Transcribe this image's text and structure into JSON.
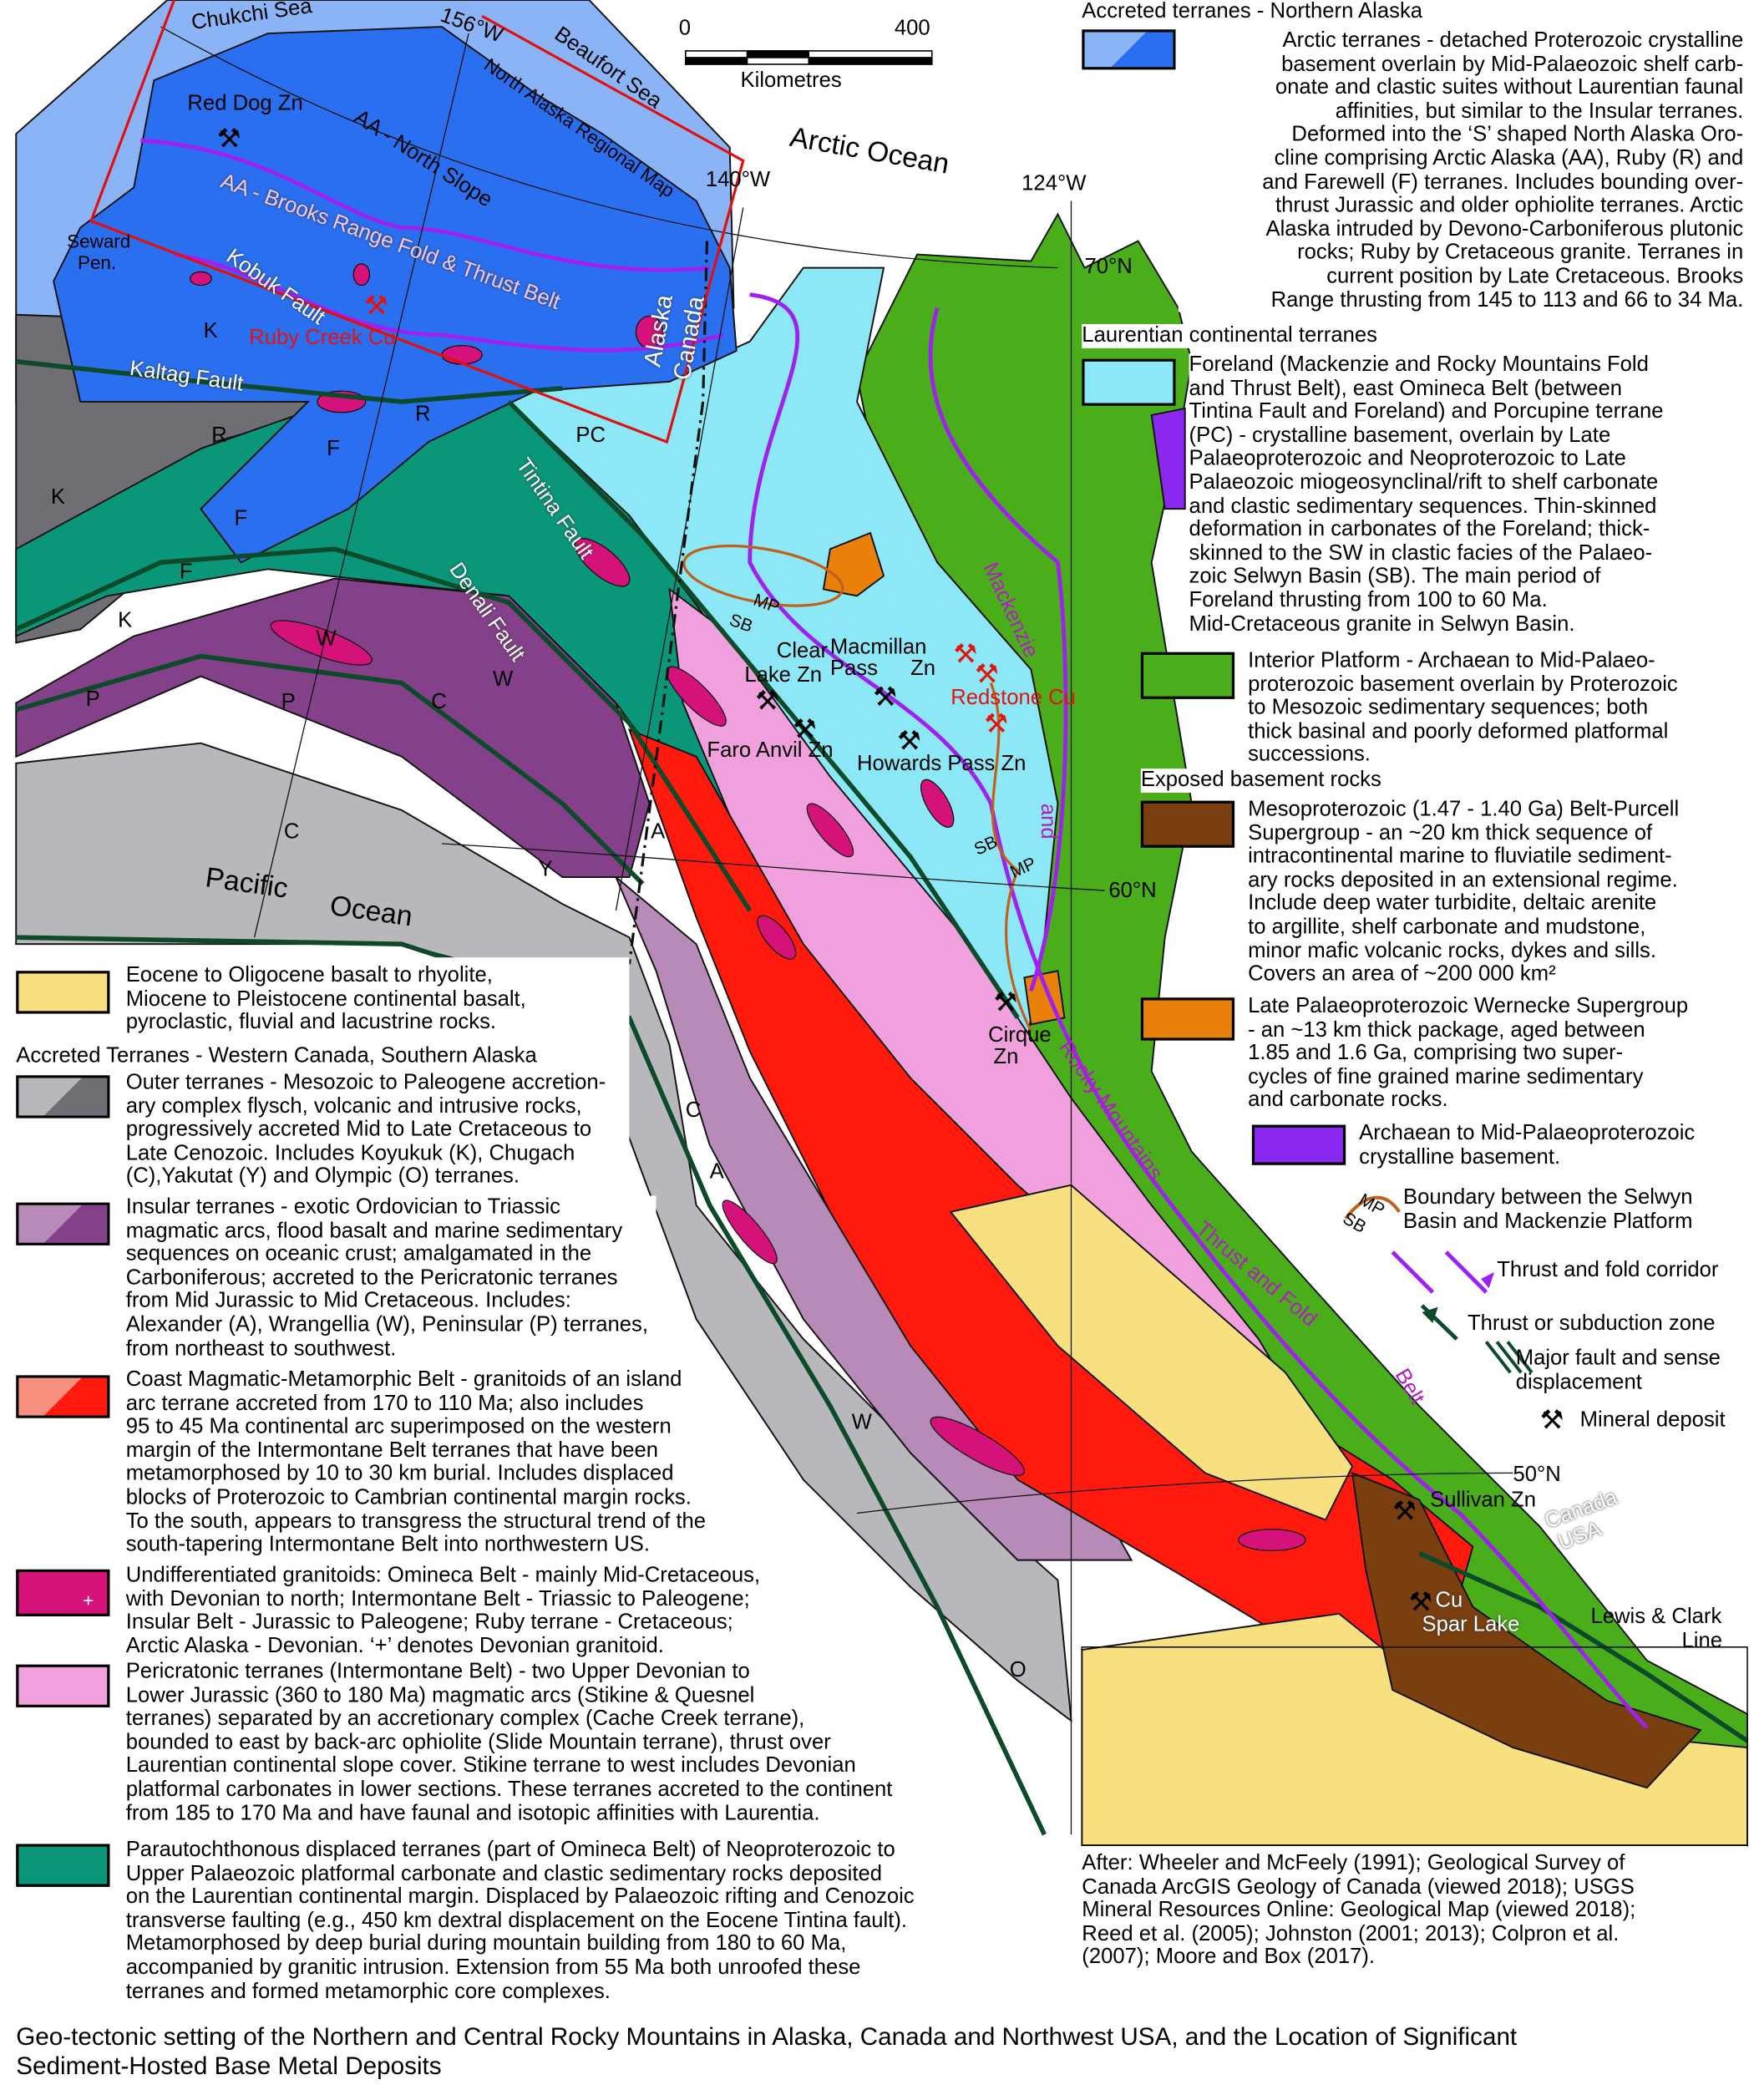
{
  "colors": {
    "arctic": "#2a6ff0",
    "arctic_light": "#8ab4f5",
    "foreland": "#8ce8f6",
    "interior": "#4aae1a",
    "outer": "#6e6e74",
    "outer_light": "#b8b8bc",
    "insular": "#84418a",
    "insular_light": "#b88ab8",
    "coast": "#ff1a0d",
    "coast_light": "#f89080",
    "granitoid": "#d4127a",
    "pericratonic": "#f0a0dc",
    "parautochthonous": "#0a9678",
    "tertiary": "#f8e080",
    "belt": "#7a3f0f",
    "wernecke": "#e8800a",
    "archaean": "#8a28f0",
    "fault": "#0d4a2a",
    "thrust": "#a020f0",
    "boundary": "#c0601a",
    "region_box": "#e01010"
  },
  "map": {
    "scale": {
      "zero": "0",
      "max": "400",
      "unit": "Kilometres"
    },
    "labels": {
      "chukchi": "Chukchi Sea",
      "lon156": "156°W",
      "beaufort": "Beaufort Sea",
      "nregional": "North Alaska Regional Map",
      "arctic_ocean": "Arctic Ocean",
      "lon140": "140°W",
      "lon124": "124°W",
      "lat70": "70°N",
      "lat60": "60°N",
      "lat50": "50°N",
      "red_dog": "Red Dog Zn",
      "north_slope": "AA - North Slope",
      "brooks": "AA - Brooks Range Fold & Thrust Belt",
      "seward1": "Seward",
      "seward2": "Pen.",
      "kobuk": "Kobuk Fault",
      "ruby_creek": "Ruby Creek Cu",
      "kaltag": "Kaltag Fault",
      "alaska": "Alaska",
      "canada": "Canada",
      "K": "K",
      "R": "R",
      "F": "F",
      "PC": "PC",
      "W": "W",
      "P": "P",
      "C": "C",
      "Y": "Y",
      "A": "A",
      "O": "O",
      "tintina": "Tintina Fault",
      "denali": "Denali Fault",
      "pacific": "Pacific",
      "ocean": "Ocean",
      "MP": "MP",
      "SB": "SB",
      "clear1": "Clear",
      "clear2": "Lake Zn",
      "mac1": "Macmillan",
      "mac2": "Pass",
      "mac3": "Zn",
      "redstone": "Redstone Cu",
      "faro": "Faro Anvil Zn",
      "howards": "Howards Pass Zn",
      "mackenzie": "Mackenzie",
      "and": "and",
      "cirque1": "Cirque",
      "cirque2": "Zn",
      "rocky": "Rocky Mountains",
      "thrust_fold": "Thrust   and   Fold",
      "belt": "Belt",
      "sullivan": "Sullivan Zn",
      "canada2": "Canada",
      "usa": "USA",
      "cu": "Cu",
      "spar": "Spar Lake",
      "lewis1": "Lewis & Clark",
      "lewis2": "Line"
    },
    "mineral_deposit_icon": "hammer-pick-icon"
  },
  "legend": {
    "north_alaska_heading": "Accreted terranes - Northern Alaska",
    "arctic": [
      "Arctic terranes - detached Proterozoic crystalline",
      "basement overlain by Mid-Palaeozoic shelf carb-",
      "onate and clastic suites without Laurentian faunal",
      "affinities, but similar to the Insular terranes.",
      "Deformed into the ‘S’ shaped North Alaska Oro-",
      "cline comprising Arctic Alaska (AA), Ruby (R) and",
      "and Farewell (F) terranes. Includes bounding over-",
      "thrust Jurassic and older ophiolite terranes. Arctic",
      "Alaska intruded by Devono-Carboniferous plutonic",
      "rocks; Ruby by Cretaceous granite. Terranes in",
      "current position by Late Cretaceous. Brooks",
      "Range thrusting from 145 to 113 and 66 to 34 Ma."
    ],
    "laurentian_heading": "Laurentian continental terranes",
    "foreland": [
      "Foreland (Mackenzie and Rocky Mountains Fold",
      "and Thrust Belt), east Omineca Belt (between",
      "Tintina Fault and Foreland) and Porcupine terrane",
      "(PC) - crystalline basement, overlain by Late",
      "Palaeoproterozoic and Neoproterozoic to Late",
      "Palaeozoic miogeosynclinal/rift to shelf carbonate",
      "and clastic sedimentary sequences. Thin-skinned",
      "deformation in carbonates of the Foreland; thick-",
      "skinned to the SW in clastic facies of the Palaeo-",
      "zoic Selwyn  Basin (SB). The main period of",
      "Foreland thrusting from 100 to 60 Ma.",
      "Mid-Cretaceous granite in Selwyn Basin."
    ],
    "interior": [
      "Interior Platform - Archaean to Mid-Palaeo-",
      "proterozoic basement overlain by Proterozoic",
      "to Mesozoic sedimentary sequences; both",
      "thick basinal and poorly deformed platformal",
      "successions."
    ],
    "basement_heading": "Exposed basement rocks",
    "belt": [
      "Mesoproterozoic (1.47 - 1.40 Ga) Belt-Purcell",
      "Supergroup - an ~20 km thick sequence of",
      "intracontinental marine to fluviatile sediment-",
      "ary rocks deposited in an extensional regime.",
      "Include deep water turbidite, deltaic arenite",
      "to argillite, shelf carbonate and mudstone,",
      "minor mafic volcanic rocks, dykes and sills.",
      "Covers an area of ~200 000 km²"
    ],
    "wernecke": [
      "Late Palaeoproterozoic Wernecke Supergroup",
      "- an ~13 km thick package, aged between",
      "1.85 and 1.6 Ga, comprising two super-",
      "cycles of  fine grained marine sedimentary",
      "and carbonate rocks."
    ],
    "archaean": [
      "Archaean to Mid-Palaeoproterozoic",
      "crystalline basement."
    ],
    "sym_boundary": [
      "Boundary between the Selwyn",
      "Basin and Mackenzie Platform"
    ],
    "sym_boundary_mp": "MP",
    "sym_boundary_sb": "SB",
    "sym_thrust_fold": "Thrust and fold corridor",
    "sym_subduction": "Thrust or subduction zone",
    "sym_fault": [
      "Major fault and sense",
      "displacement"
    ],
    "sym_mineral": "Mineral deposit",
    "tertiary": [
      "Eocene to Oligocene basalt to rhyolite,",
      "Miocene to Pleistocene continental basalt,",
      "pyroclastic, fluvial and lacustrine rocks."
    ],
    "western_heading": "Accreted Terranes - Western Canada, Southern Alaska",
    "outer": [
      "Outer terranes - Mesozoic to Paleogene accretion-",
      "ary complex flysch, volcanic and intrusive rocks,",
      "progressively accreted Mid to Late Cretaceous to",
      "Late Cenozoic. Includes Koyukuk (K), Chugach",
      "(C),Yakutat (Y) and Olympic (O) terranes."
    ],
    "insular": [
      "Insular terranes - exotic Ordovician to Triassic",
      "magmatic arcs, flood basalt and marine sedimentary",
      "sequences on oceanic crust; amalgamated in the",
      "Carboniferous;  accreted to the Pericratonic terranes",
      "from Mid Jurassic  to Mid Cretaceous. Includes:",
      "Alexander (A), Wrangellia (W), Peninsular (P) terranes,",
      "from northeast to southwest."
    ],
    "coast": [
      "Coast Magmatic-Metamorphic Belt - granitoids of an island",
      "arc terrane accreted from 170 to 110 Ma; also includes",
      "95 to 45 Ma continental arc superimposed on the western",
      "margin of the Intermontane Belt terranes that have been",
      "metamorphosed by 10 to 30 km burial. Includes displaced",
      "blocks of Proterozoic to Cambrian continental margin rocks.",
      "To the south, appears to transgress the structural trend of the",
      "south-tapering Intermontane Belt into northwestern US."
    ],
    "granitoid": [
      "Undifferentiated granitoids: Omineca Belt  - mainly Mid-Cretaceous,",
      "with Devonian to north; Intermontane Belt - Triassic to Paleogene;",
      "Insular Belt - Jurassic to Paleogene; Ruby terrane - Cretaceous;",
      "Arctic Alaska - Devonian. ‘+’ denotes Devonian granitoid."
    ],
    "granitoid_plus": "+",
    "pericratonic": [
      "Pericratonic terranes (Intermontane Belt) - two Upper Devonian to",
      "Lower Jurassic (360 to 180 Ma) magmatic arcs (Stikine & Quesnel",
      "terranes) separated by an accretionary complex (Cache Creek terrane),",
      "bounded to east by back-arc ophiolite (Slide Mountain terrane), thrust over",
      "Laurentian continental slope cover. Stikine terrane to west includes Devonian",
      "platformal carbonates in lower sections. These terranes accreted to the continent",
      "from 185 to 170 Ma and have faunal and isotopic affinities with Laurentia."
    ],
    "parautochthonous": [
      "Parautochthonous displaced terranes (part of Omineca Belt) of Neoproterozoic to",
      "Upper Palaeozoic platformal carbonate and clastic sedimentary rocks deposited",
      "on the Laurentian continental margin. Displaced by Palaeozoic rifting and Cenozoic",
      "transverse faulting (e.g., 450 km dextral displacement on the Eocene Tintina fault).",
      "Metamorphosed by deep burial during mountain building from 180 to 60 Ma,",
      "accompanied by granitic intrusion. Extension from 55 Ma both unroofed these",
      "terranes and formed metamorphic core complexes."
    ]
  },
  "sources": [
    "After: Wheeler and McFeely (1991); Geological Survey of",
    "Canada ArcGIS Geology of Canada (viewed 2018); USGS",
    "Mineral Resources Online: Geological Map (viewed 2018);",
    "Reed et al. (2005); Johnston (2001; 2013); Colpron et al.",
    "(2007); Moore and Box (2017)."
  ],
  "caption": [
    "Geo-tectonic setting of the Northern and Central Rocky Mountains in Alaska, Canada and Northwest USA, and the Location of Significant",
    "Sediment-Hosted Base Metal Deposits"
  ]
}
